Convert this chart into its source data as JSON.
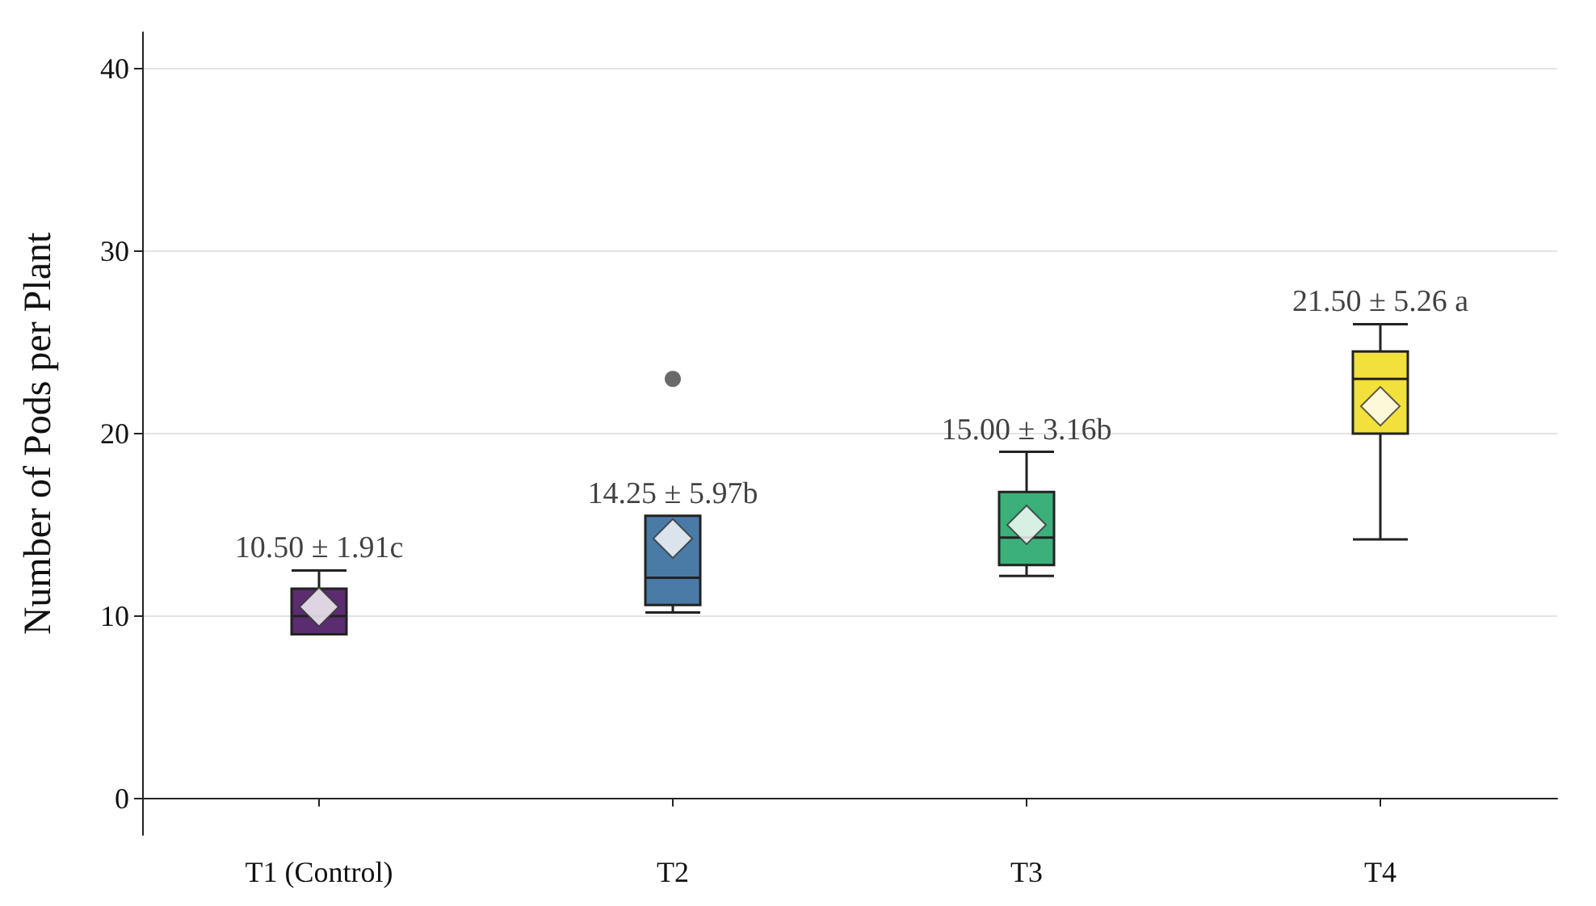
{
  "chart_data": {
    "type": "box",
    "ylabel": "Number of Pods per Plant",
    "categories": [
      "T1 (Control)",
      "T2",
      "T3",
      "T4"
    ],
    "colors": [
      "#5b2c6f",
      "#4a7aa6",
      "#3cb07a",
      "#f2e03c"
    ],
    "boxes": [
      {
        "low": 9,
        "q1": 9,
        "median": 10,
        "q3": 11.5,
        "high": 12.5,
        "mean": 10.5
      },
      {
        "low": 10.2,
        "q1": 10.6,
        "median": 12.1,
        "q3": 15.5,
        "high": 15.5,
        "mean": 14.25,
        "outliers": [
          23
        ]
      },
      {
        "low": 12.2,
        "q1": 12.8,
        "median": 14.3,
        "q3": 16.8,
        "high": 19,
        "mean": 15
      },
      {
        "low": 14.2,
        "q1": 20,
        "median": 23,
        "q3": 24.5,
        "high": 26,
        "mean": 21.5
      }
    ],
    "annotations": [
      "10.50 ± 1.91c",
      "14.25 ± 5.97b",
      "15.00 ± 3.16b",
      "21.50 ± 5.26 a"
    ],
    "ylim": [
      -2,
      42
    ],
    "yticks": [
      0,
      10,
      20,
      30,
      40
    ],
    "grid": "y"
  }
}
